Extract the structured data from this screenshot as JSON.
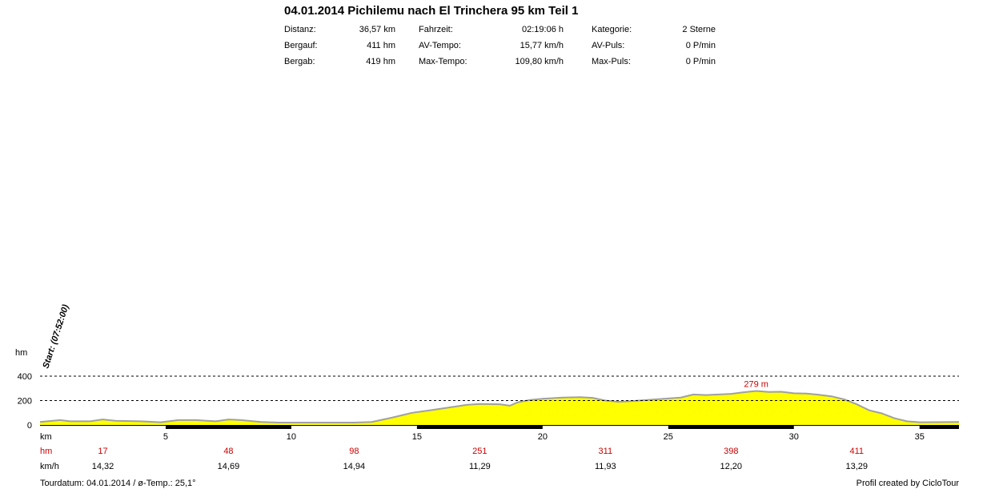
{
  "header": {
    "title": "04.01.2014 Pichilemu nach El Trinchera 95 km Teil 1",
    "stats": [
      [
        {
          "label": "Distanz:",
          "value": "36,57 km"
        },
        {
          "label": "Fahrzeit:",
          "value": "02:19:06 h"
        },
        {
          "label": "Kategorie:",
          "value": "2 Sterne"
        }
      ],
      [
        {
          "label": "Bergauf:",
          "value": "411 hm"
        },
        {
          "label": "AV-Tempo:",
          "value": "15,77 km/h"
        },
        {
          "label": "AV-Puls:",
          "value": "0 P/min"
        }
      ],
      [
        {
          "label": "Bergab:",
          "value": "419 hm"
        },
        {
          "label": "Max-Tempo:",
          "value": "109,80 km/h"
        },
        {
          "label": "Max-Puls:",
          "value": "0 P/min"
        }
      ]
    ]
  },
  "footer": {
    "left": "Tourdatum: 04.01.2014  /  ø-Temp.: 25,1°",
    "right": "Profil created by CicloTour"
  },
  "colors": {
    "fill": "#ffff00",
    "outline": "#a0a0a0",
    "red": "#cc0000"
  },
  "chart_data": {
    "type": "area",
    "y_unit_label": "hm",
    "x_unit_label": "km",
    "ylim": [
      0,
      400
    ],
    "yticks": [
      0,
      200,
      400
    ],
    "xlim": [
      0,
      36.57
    ],
    "xticks": [
      5,
      10,
      15,
      20,
      25,
      30,
      35
    ],
    "start_label": "Start: (07:52:00)",
    "max_label": "279 m",
    "max_point": {
      "x": 28.5,
      "y": 279
    },
    "elevation": [
      {
        "x": 0,
        "y": 25
      },
      {
        "x": 0.8,
        "y": 40
      },
      {
        "x": 1.2,
        "y": 30
      },
      {
        "x": 2,
        "y": 30
      },
      {
        "x": 2.5,
        "y": 45
      },
      {
        "x": 3,
        "y": 35
      },
      {
        "x": 4,
        "y": 30
      },
      {
        "x": 4.8,
        "y": 22
      },
      {
        "x": 5.5,
        "y": 40
      },
      {
        "x": 6.2,
        "y": 40
      },
      {
        "x": 7,
        "y": 30
      },
      {
        "x": 7.5,
        "y": 45
      },
      {
        "x": 8,
        "y": 40
      },
      {
        "x": 8.8,
        "y": 25
      },
      {
        "x": 9.5,
        "y": 20
      },
      {
        "x": 10.5,
        "y": 20
      },
      {
        "x": 11.5,
        "y": 20
      },
      {
        "x": 12.5,
        "y": 20
      },
      {
        "x": 13.2,
        "y": 25
      },
      {
        "x": 14,
        "y": 60
      },
      {
        "x": 14.8,
        "y": 100
      },
      {
        "x": 15.5,
        "y": 120
      },
      {
        "x": 16.5,
        "y": 150
      },
      {
        "x": 17,
        "y": 165
      },
      {
        "x": 17.5,
        "y": 172
      },
      {
        "x": 18.3,
        "y": 170
      },
      {
        "x": 18.7,
        "y": 158
      },
      {
        "x": 19,
        "y": 185
      },
      {
        "x": 19.5,
        "y": 205
      },
      {
        "x": 20,
        "y": 215
      },
      {
        "x": 20.8,
        "y": 225
      },
      {
        "x": 21.5,
        "y": 228
      },
      {
        "x": 22,
        "y": 222
      },
      {
        "x": 22.5,
        "y": 200
      },
      {
        "x": 23,
        "y": 190
      },
      {
        "x": 23.5,
        "y": 195
      },
      {
        "x": 24.5,
        "y": 210
      },
      {
        "x": 25.5,
        "y": 225
      },
      {
        "x": 26,
        "y": 250
      },
      {
        "x": 26.5,
        "y": 245
      },
      {
        "x": 27,
        "y": 250
      },
      {
        "x": 27.5,
        "y": 255
      },
      {
        "x": 28,
        "y": 268
      },
      {
        "x": 28.5,
        "y": 279
      },
      {
        "x": 29,
        "y": 270
      },
      {
        "x": 29.5,
        "y": 272
      },
      {
        "x": 30,
        "y": 260
      },
      {
        "x": 30.5,
        "y": 258
      },
      {
        "x": 31,
        "y": 248
      },
      {
        "x": 31.5,
        "y": 235
      },
      {
        "x": 32,
        "y": 210
      },
      {
        "x": 32.5,
        "y": 170
      },
      {
        "x": 33,
        "y": 120
      },
      {
        "x": 33.5,
        "y": 95
      },
      {
        "x": 34,
        "y": 55
      },
      {
        "x": 34.5,
        "y": 30
      },
      {
        "x": 35,
        "y": 22
      },
      {
        "x": 36.57,
        "y": 25
      }
    ],
    "hm_row_label": "hm",
    "hm_row": [
      {
        "x": 2.5,
        "label": "17"
      },
      {
        "x": 7.5,
        "label": "48"
      },
      {
        "x": 12.5,
        "label": "98"
      },
      {
        "x": 17.5,
        "label": "251"
      },
      {
        "x": 22.5,
        "label": "311"
      },
      {
        "x": 27.5,
        "label": "398"
      },
      {
        "x": 32.5,
        "label": "411"
      }
    ],
    "speed_row_label": "km/h",
    "speed_row": [
      {
        "x": 2.5,
        "label": "14,32"
      },
      {
        "x": 7.5,
        "label": "14,69"
      },
      {
        "x": 12.5,
        "label": "14,94"
      },
      {
        "x": 17.5,
        "label": "11,29"
      },
      {
        "x": 22.5,
        "label": "11,93"
      },
      {
        "x": 27.5,
        "label": "12,20"
      },
      {
        "x": 32.5,
        "label": "13,29"
      }
    ]
  }
}
